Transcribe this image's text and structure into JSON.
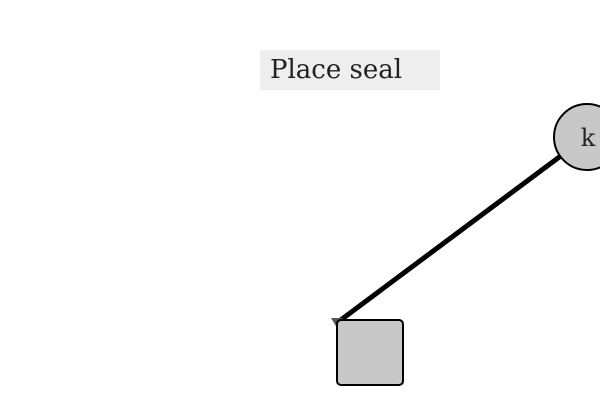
{
  "instruction": {
    "text": "Place seal"
  },
  "pivot_node": {
    "label": "k"
  },
  "colors": {
    "background": "#ffffff",
    "label_box": "#eeeeee",
    "node_fill": "#c8c8c8",
    "stroke": "#000000"
  },
  "icons": {
    "line_end_marker": "triangle-marker-icon"
  }
}
